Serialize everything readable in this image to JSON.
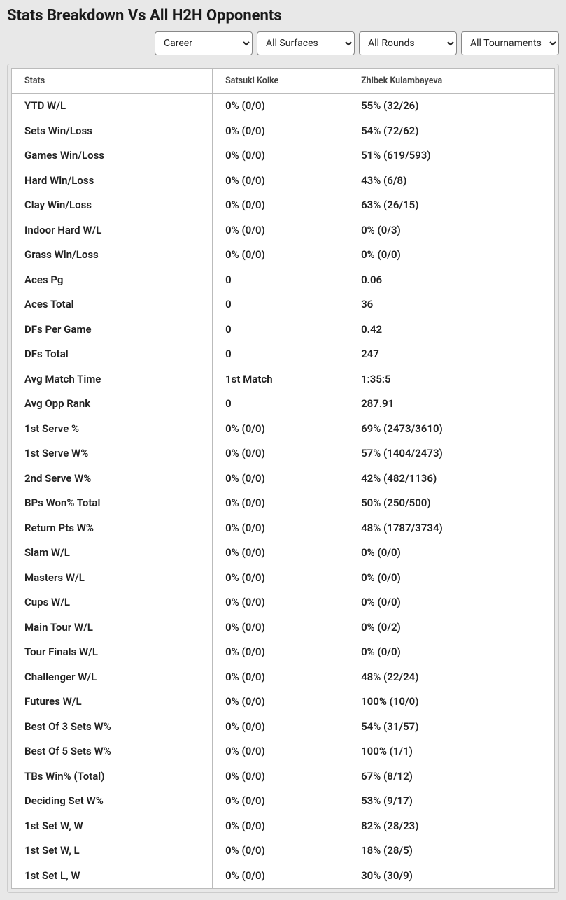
{
  "title": "Stats Breakdown Vs All H2H Opponents",
  "filters": {
    "career": "Career",
    "surfaces": "All Surfaces",
    "rounds": "All Rounds",
    "tournaments": "All Tournaments"
  },
  "table": {
    "columns": [
      "Stats",
      "Satsuki Koike",
      "Zhibek Kulambayeva"
    ],
    "rows": [
      [
        "YTD W/L",
        "0% (0/0)",
        "55% (32/26)"
      ],
      [
        "Sets Win/Loss",
        "0% (0/0)",
        "54% (72/62)"
      ],
      [
        "Games Win/Loss",
        "0% (0/0)",
        "51% (619/593)"
      ],
      [
        "Hard Win/Loss",
        "0% (0/0)",
        "43% (6/8)"
      ],
      [
        "Clay Win/Loss",
        "0% (0/0)",
        "63% (26/15)"
      ],
      [
        "Indoor Hard W/L",
        "0% (0/0)",
        "0% (0/3)"
      ],
      [
        "Grass Win/Loss",
        "0% (0/0)",
        "0% (0/0)"
      ],
      [
        "Aces Pg",
        "0",
        "0.06"
      ],
      [
        "Aces Total",
        "0",
        "36"
      ],
      [
        "DFs Per Game",
        "0",
        "0.42"
      ],
      [
        "DFs Total",
        "0",
        "247"
      ],
      [
        "Avg Match Time",
        "1st Match",
        "1:35:5"
      ],
      [
        "Avg Opp Rank",
        "0",
        "287.91"
      ],
      [
        "1st Serve %",
        "0% (0/0)",
        "69% (2473/3610)"
      ],
      [
        "1st Serve W%",
        "0% (0/0)",
        "57% (1404/2473)"
      ],
      [
        "2nd Serve W%",
        "0% (0/0)",
        "42% (482/1136)"
      ],
      [
        "BPs Won% Total",
        "0% (0/0)",
        "50% (250/500)"
      ],
      [
        "Return Pts W%",
        "0% (0/0)",
        "48% (1787/3734)"
      ],
      [
        "Slam W/L",
        "0% (0/0)",
        "0% (0/0)"
      ],
      [
        "Masters W/L",
        "0% (0/0)",
        "0% (0/0)"
      ],
      [
        "Cups W/L",
        "0% (0/0)",
        "0% (0/0)"
      ],
      [
        "Main Tour W/L",
        "0% (0/0)",
        "0% (0/2)"
      ],
      [
        "Tour Finals W/L",
        "0% (0/0)",
        "0% (0/0)"
      ],
      [
        "Challenger W/L",
        "0% (0/0)",
        "48% (22/24)"
      ],
      [
        "Futures W/L",
        "0% (0/0)",
        "100% (10/0)"
      ],
      [
        "Best Of 3 Sets W%",
        "0% (0/0)",
        "54% (31/57)"
      ],
      [
        "Best Of 5 Sets W%",
        "0% (0/0)",
        "100% (1/1)"
      ],
      [
        "TBs Win% (Total)",
        "0% (0/0)",
        "67% (8/12)"
      ],
      [
        "Deciding Set W%",
        "0% (0/0)",
        "53% (9/17)"
      ],
      [
        "1st Set W, W",
        "0% (0/0)",
        "82% (28/23)"
      ],
      [
        "1st Set W, L",
        "0% (0/0)",
        "18% (28/5)"
      ],
      [
        "1st Set L, W",
        "0% (0/0)",
        "30% (30/9)"
      ]
    ]
  }
}
